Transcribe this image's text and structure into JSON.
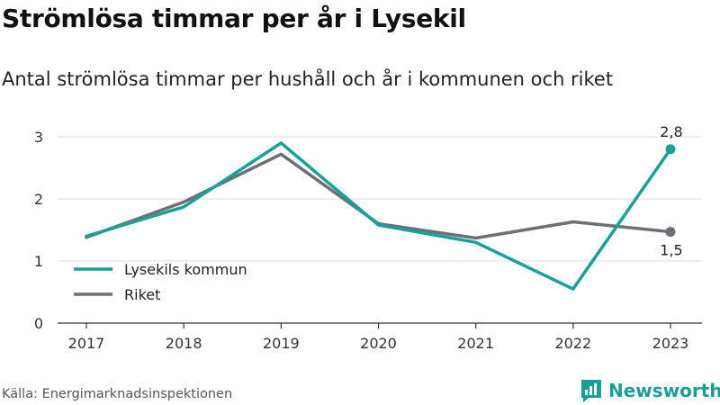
{
  "title": "Strömlösa timmar per år i Lysekil",
  "subtitle": "Antal strömlösa timmar per hushåll och år i kommunen och riket",
  "source": "Källa: Energimarknadsinspektionen",
  "brand": {
    "name": "Newsworthy",
    "icon": "bar-chart-logo-icon",
    "color": "#1a9e99"
  },
  "chart_data": {
    "type": "line",
    "categories": [
      "2017",
      "2018",
      "2019",
      "2020",
      "2021",
      "2022",
      "2023"
    ],
    "ylim": [
      0,
      3
    ],
    "yticks": [
      "0",
      "1",
      "2",
      "3"
    ],
    "grid": true,
    "legend": "bottom-left",
    "series": [
      {
        "name": "Riket",
        "color": "#6e6e73",
        "values": [
          1.38,
          1.95,
          2.72,
          1.6,
          1.37,
          1.63,
          1.47
        ],
        "end_label": "1,5"
      },
      {
        "name": "Lysekils kommun",
        "color": "#17a19a",
        "values": [
          1.4,
          1.87,
          2.9,
          1.58,
          1.3,
          0.55,
          2.8
        ],
        "end_label": "2,8"
      }
    ]
  }
}
